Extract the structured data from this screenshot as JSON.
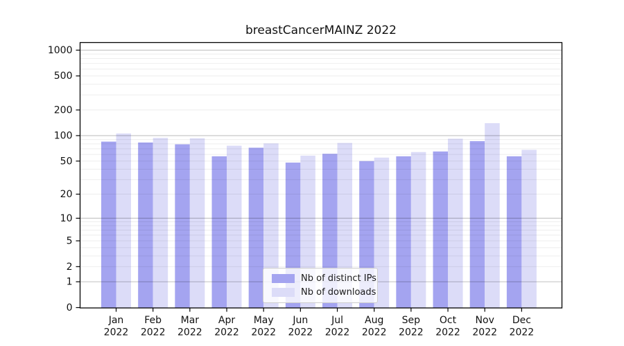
{
  "figure": {
    "title": "breastCancerMAINZ 2022"
  },
  "chart_data": {
    "type": "bar",
    "title": "breastCancerMAINZ 2022",
    "categories": [
      "Jan",
      "Feb",
      "Mar",
      "Apr",
      "May",
      "Jun",
      "Jul",
      "Aug",
      "Sep",
      "Oct",
      "Nov",
      "Dec"
    ],
    "category_year": "2022",
    "series": [
      {
        "name": "Nb of distinct IPs",
        "color": "#a4a4f0",
        "values": [
          85,
          83,
          79,
          57,
          72,
          48,
          61,
          50,
          57,
          65,
          86,
          57
        ]
      },
      {
        "name": "Nb of downloads",
        "color": "#dcdcf8",
        "values": [
          106,
          94,
          93,
          76,
          81,
          58,
          82,
          55,
          64,
          92,
          140,
          68
        ]
      }
    ],
    "xlabel": "",
    "ylabel": "",
    "y_scale": "log1p",
    "y_ticks": [
      0,
      1,
      2,
      5,
      10,
      20,
      50,
      100,
      200,
      500,
      1000
    ],
    "ylim": [
      0,
      1000
    ],
    "grid": "horizontal-major-and-minor",
    "legend_position": "inside-bottom-center",
    "colors": {
      "major_gridline": "rgba(0,0,0,0.22)",
      "minor_gridline": "rgba(0,0,0,0.07)",
      "axis": "#000000",
      "text": "#111111"
    }
  }
}
